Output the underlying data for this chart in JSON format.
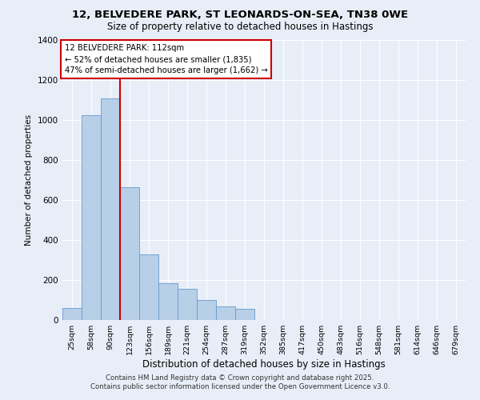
{
  "title": "12, BELVEDERE PARK, ST LEONARDS-ON-SEA, TN38 0WE",
  "subtitle": "Size of property relative to detached houses in Hastings",
  "xlabel": "Distribution of detached houses by size in Hastings",
  "ylabel": "Number of detached properties",
  "footer_line1": "Contains HM Land Registry data © Crown copyright and database right 2025.",
  "footer_line2": "Contains public sector information licensed under the Open Government Licence v3.0.",
  "bar_labels": [
    "25sqm",
    "58sqm",
    "90sqm",
    "123sqm",
    "156sqm",
    "189sqm",
    "221sqm",
    "254sqm",
    "287sqm",
    "319sqm",
    "352sqm",
    "385sqm",
    "417sqm",
    "450sqm",
    "483sqm",
    "516sqm",
    "548sqm",
    "581sqm",
    "614sqm",
    "646sqm",
    "679sqm"
  ],
  "bar_values": [
    62,
    1025,
    1110,
    665,
    330,
    185,
    155,
    100,
    68,
    55,
    0,
    0,
    0,
    0,
    0,
    0,
    0,
    0,
    0,
    0,
    0
  ],
  "bar_color": "#b8cfe8",
  "bar_edge_color": "#6699cc",
  "background_color": "#e8eef8",
  "grid_color": "#ffffff",
  "annotation_box_title": "12 BELVEDERE PARK: 112sqm",
  "annotation_line1": "← 52% of detached houses are smaller (1,835)",
  "annotation_line2": "47% of semi-detached houses are larger (1,662) →",
  "property_line_x": 2.5,
  "ylim": [
    0,
    1400
  ],
  "yticks": [
    0,
    200,
    400,
    600,
    800,
    1000,
    1200,
    1400
  ]
}
